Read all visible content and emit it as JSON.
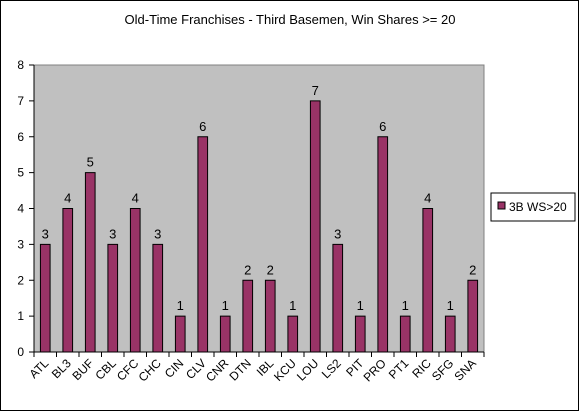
{
  "chart_data": {
    "type": "bar",
    "title": "Old-Time Franchises - Third Basemen, Win Shares >= 20",
    "xlabel": "",
    "ylabel": "",
    "categories": [
      "ATL",
      "BL3",
      "BUF",
      "CBL",
      "CFC",
      "CHC",
      "CIN",
      "CLV",
      "CNR",
      "DTN",
      "IBL",
      "KCU",
      "LOU",
      "LS2",
      "PIT",
      "PRO",
      "PT1",
      "RIC",
      "SFG",
      "SNA"
    ],
    "series": [
      {
        "name": "3B WS>20",
        "values": [
          3,
          4,
          5,
          3,
          4,
          3,
          1,
          6,
          1,
          2,
          2,
          1,
          7,
          3,
          1,
          6,
          1,
          4,
          1,
          2
        ]
      }
    ],
    "ylim": [
      0,
      8
    ],
    "yticks": [
      0,
      1,
      2,
      3,
      4,
      5,
      6,
      7,
      8
    ],
    "grid": false,
    "data_labels": true,
    "legend": "right",
    "colors": {
      "bar": "#993366",
      "plot_bg": "#c0c0c0",
      "page_bg": "#ffffff"
    }
  }
}
